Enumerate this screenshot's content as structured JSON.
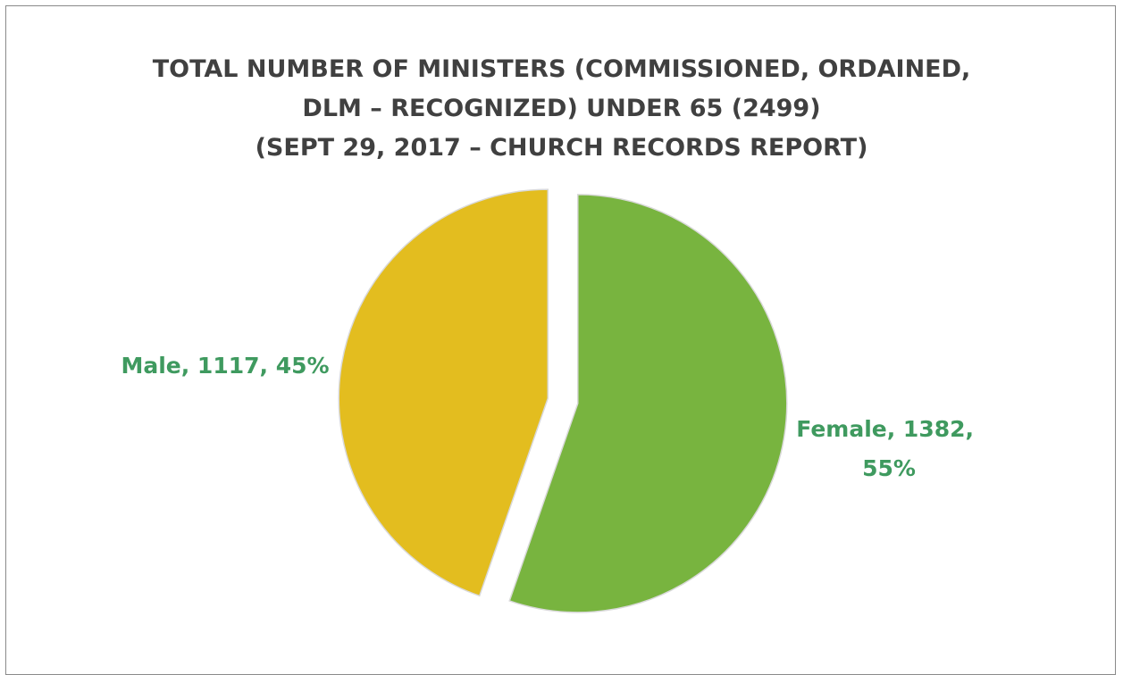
{
  "chart_data": {
    "type": "pie",
    "title_lines": [
      "TOTAL NUMBER OF MINISTERS (COMMISSIONED, ORDAINED,",
      "DLM – RECOGNIZED) UNDER 65 (2499)",
      "(SEPT 29, 2017 – CHURCH RECORDS REPORT)"
    ],
    "slices": [
      {
        "label": "Female",
        "value": 1382,
        "percent": 55,
        "label_lines": [
          "Female, 1382,",
          "55%"
        ],
        "color": "#78b43f"
      },
      {
        "label": "Male",
        "value": 1117,
        "percent": 45,
        "label_lines": [
          "Male, 1117, 45%"
        ],
        "color": "#e3bd1f"
      }
    ],
    "label_color": "#3f9a5f",
    "legend": "none"
  }
}
